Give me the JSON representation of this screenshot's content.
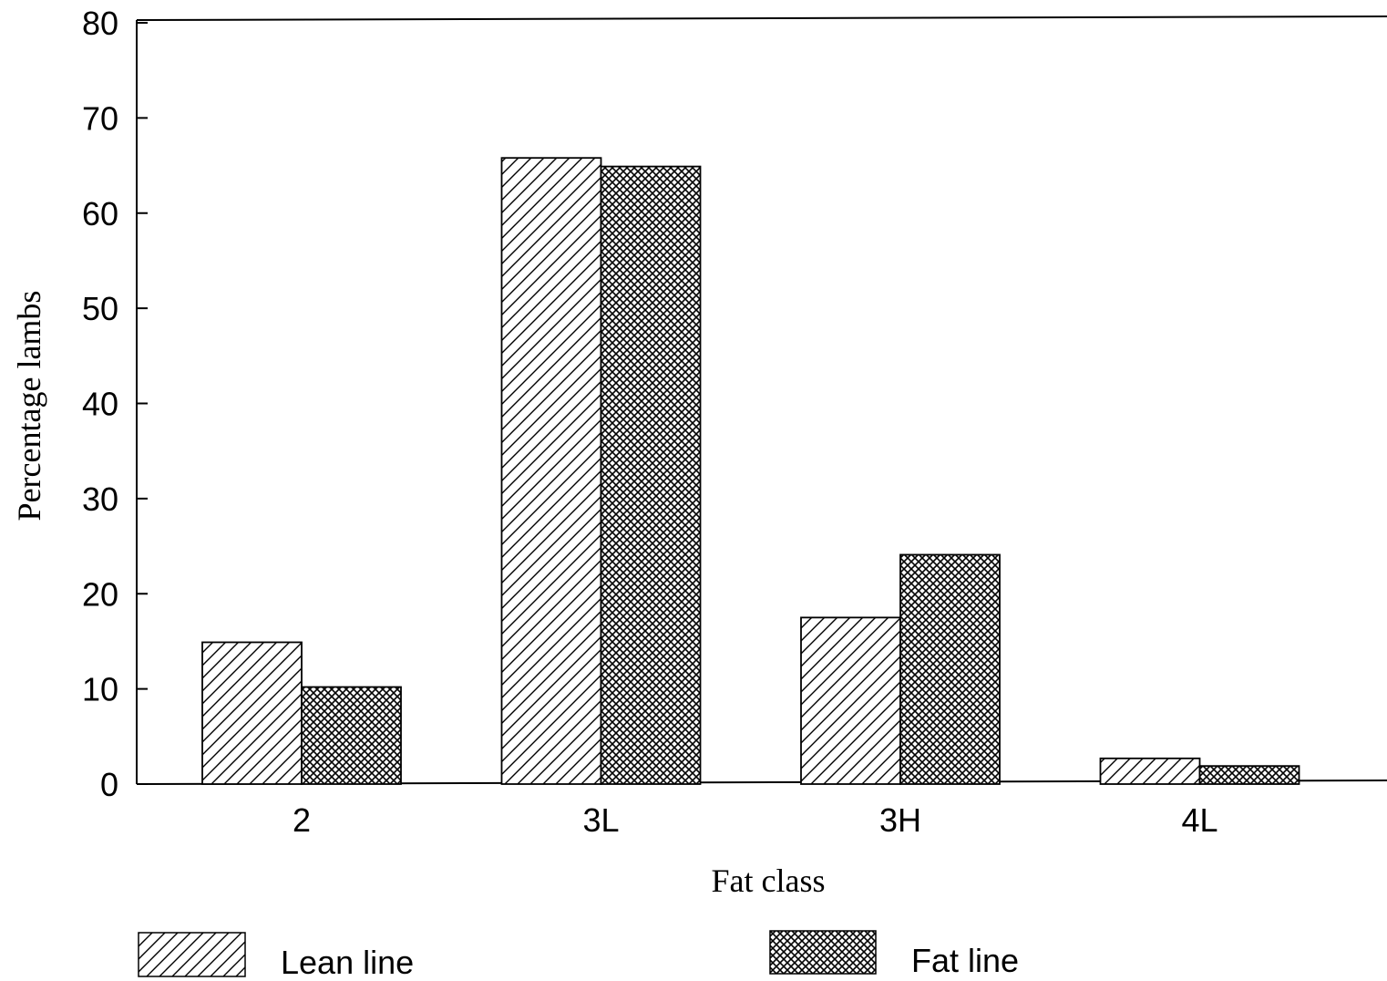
{
  "chart_data": {
    "type": "bar",
    "categories": [
      "2",
      "3L",
      "3H",
      "4L"
    ],
    "series": [
      {
        "name": "Lean line",
        "values": [
          14.9,
          65.8,
          17.5,
          2.7
        ],
        "pattern": "diagonal-hatch"
      },
      {
        "name": "Fat line",
        "values": [
          10.2,
          64.9,
          24.1,
          1.9
        ],
        "pattern": "cross-hatch"
      }
    ],
    "title": "",
    "xlabel": "Fat class",
    "ylabel": "Percentage lambs",
    "ylim": [
      0,
      80
    ],
    "yticks": [
      "0",
      "10",
      "20",
      "30",
      "40",
      "50",
      "60",
      "70",
      "80"
    ],
    "grid": false,
    "legend_position": "bottom"
  }
}
